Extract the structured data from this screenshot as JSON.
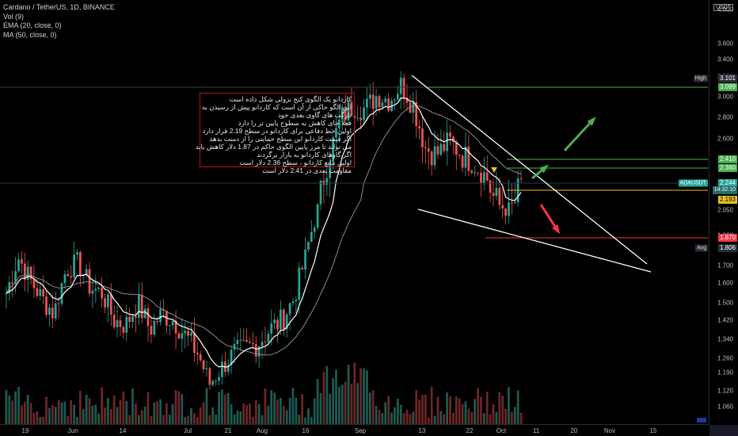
{
  "legend": {
    "symbol": "Cardano / TetherUS, 1D, BINANCE",
    "vol": "Vol (9)",
    "ema": "EMA (20, close, 0)",
    "ma": "MA (50, close, 0)"
  },
  "currency": "USDT",
  "annotation_lines": [
    "کاردانو یک الگوی کنج نزولی شکل داده است",
    "این الگو حاکی از آن است که کاردانو پیش از رسیدن به",
    "تارگت های گاوی بعدی خود",
    "فعلا جای کاهش به سطوح پایین تر را دارد",
    "اولین خط دفاعی برای کاردانو در سطح 2.19 قرار دارد",
    "اگر قیمت کاردانو این سطح حمایتی را از دست بدهد",
    "می تواند تا مرز پایین الگوی حاکم در 1.87 دلار کاهش یابد",
    "اگر گاوهای کاردانو به بازار برگردند",
    "اولین مانع کاردانو ، سطح 2.36 دلار است",
    "مقاومت بعدی در 2.41 دلار است"
  ],
  "price_tags": {
    "high_label": "High",
    "high_value": "3.101",
    "green1": "3.099",
    "g241": "2.410",
    "g236": "2.360",
    "symbol_tag": "ADAUSDT",
    "last": "2.244",
    "countdown": "14:32:10",
    "support": "2.193",
    "red": "1.870",
    "avg_label": "Avg",
    "avg_value": "1.806"
  },
  "colors": {
    "up": "#26a69a",
    "down": "#ef5350",
    "ema": "#ffffff",
    "ma": "#8a8a8a",
    "green_level": "#4caf50",
    "yellow_level": "#e6c229",
    "red_level": "#f23645",
    "background": "#000000"
  },
  "chart_data": {
    "type": "candlestick",
    "title": "Cardano / TetherUS, 1D, BINANCE",
    "price_axis_ticks": [
      "4.000",
      "3.600",
      "3.400",
      "3.200",
      "3.000",
      "2.800",
      "2.600",
      "2.400",
      "2.200",
      "2.050",
      "1.900",
      "1.800",
      "1.700",
      "1.600",
      "1.500",
      "1.420",
      "1.340",
      "1.260",
      "1.190",
      "1.120",
      "1.060"
    ],
    "time_axis_labels": [
      "19",
      "Jun",
      "14",
      "Jul",
      "21",
      "Aug",
      "16",
      "Sep",
      "13",
      "22",
      "Oct",
      "11",
      "20",
      "Nov",
      "15"
    ],
    "log_scale": true,
    "grid": false,
    "levels": {
      "high": 3.101,
      "resistance_top": 3.099,
      "resistance_2": 2.41,
      "resistance_1": 2.36,
      "last_price": 2.244,
      "support_1": 2.193,
      "support_2": 1.87,
      "avg": 1.806
    },
    "close_path": [
      [
        "19",
        1.55
      ],
      [
        "",
        1.75
      ],
      [
        "",
        1.62
      ],
      [
        "",
        1.52
      ],
      [
        "",
        1.45
      ],
      [
        "Jun",
        1.68
      ],
      [
        "",
        1.72
      ],
      [
        "",
        1.58
      ],
      [
        "14",
        1.55
      ],
      [
        "",
        1.42
      ],
      [
        "",
        1.4
      ],
      [
        "",
        1.5
      ],
      [
        "Jul",
        1.38
      ],
      [
        "",
        1.45
      ],
      [
        "",
        1.42
      ],
      [
        "",
        1.35
      ],
      [
        "",
        1.28
      ],
      [
        "21",
        1.15
      ],
      [
        "",
        1.22
      ],
      [
        "",
        1.28
      ],
      [
        "",
        1.3
      ],
      [
        "Aug",
        1.32
      ],
      [
        "",
        1.38
      ],
      [
        "",
        1.42
      ],
      [
        "",
        1.52
      ],
      [
        "",
        1.75
      ],
      [
        "",
        2.1
      ],
      [
        "16",
        2.45
      ],
      [
        "",
        2.75
      ],
      [
        "",
        2.85
      ],
      [
        "",
        2.82
      ],
      [
        "",
        2.95
      ],
      [
        "",
        2.9
      ],
      [
        "Sep",
        3.05
      ],
      [
        "",
        2.85
      ],
      [
        "",
        2.5
      ],
      [
        "",
        2.45
      ],
      [
        "",
        2.55
      ],
      [
        "13",
        2.45
      ],
      [
        "",
        2.4
      ],
      [
        "",
        2.3
      ],
      [
        "22",
        2.15
      ],
      [
        "",
        2.1
      ],
      [
        "",
        2.244
      ]
    ]
  }
}
